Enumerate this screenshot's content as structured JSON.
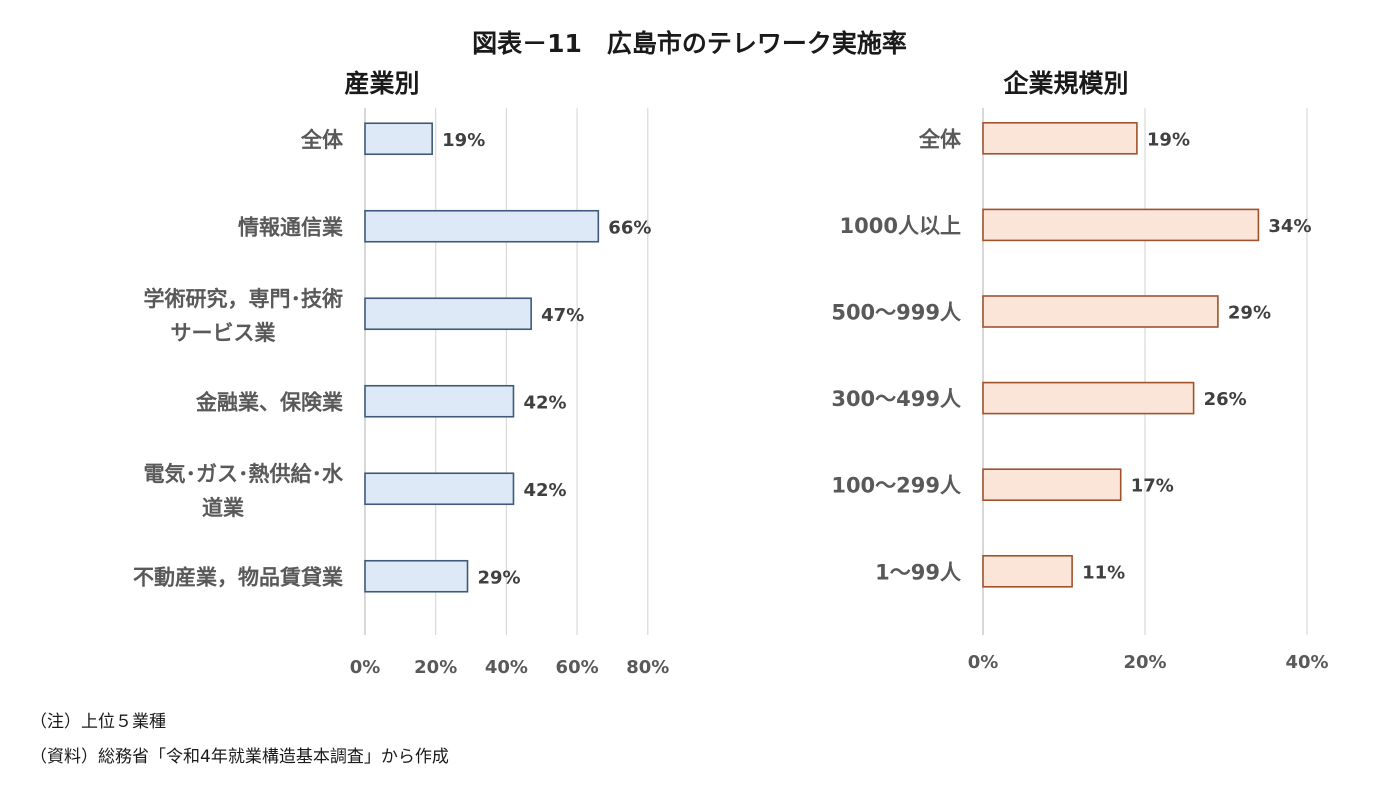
{
  "title": "図表－11　広島市のテレワーク実施率",
  "notes": {
    "note": "（注）上位５業種",
    "source": "（資料）総務省「令和4年就業構造基本調査」から作成"
  },
  "chart_data": [
    {
      "type": "bar",
      "orientation": "horizontal",
      "title": "産業別",
      "categories": [
        [
          "全体"
        ],
        [
          "情報通信業"
        ],
        [
          "学術研究，専門･技術",
          "サービス業"
        ],
        [
          "金融業、保険業"
        ],
        [
          "電気･ガス･熱供給･水",
          "道業"
        ],
        [
          "不動産業，物品賃貸業"
        ]
      ],
      "values": [
        19,
        66,
        47,
        42,
        42,
        29
      ],
      "value_labels": [
        "19%",
        "66%",
        "47%",
        "42%",
        "42%",
        "29%"
      ],
      "xlim": [
        0,
        80
      ],
      "xticks": [
        0,
        20,
        40,
        60,
        80
      ],
      "xtick_labels": [
        "0%",
        "20%",
        "40%",
        "60%",
        "80%"
      ],
      "grid": true,
      "colors": {
        "fill": "#dde9f6",
        "stroke": "#3e5a7a"
      }
    },
    {
      "type": "bar",
      "orientation": "horizontal",
      "title": "企業規模別",
      "categories": [
        [
          "全体"
        ],
        [
          "1000人以上"
        ],
        [
          "500～999人"
        ],
        [
          "300～499人"
        ],
        [
          "100～299人"
        ],
        [
          "1～99人"
        ]
      ],
      "values": [
        19,
        34,
        29,
        26,
        17,
        11
      ],
      "value_labels": [
        "19%",
        "34%",
        "29%",
        "26%",
        "17%",
        "11%"
      ],
      "xlim": [
        0,
        40
      ],
      "xticks": [
        0,
        20,
        40
      ],
      "xtick_labels": [
        "0%",
        "20%",
        "40%"
      ],
      "grid": true,
      "colors": {
        "fill": "#fbe5d8",
        "stroke": "#a0522d"
      }
    }
  ]
}
